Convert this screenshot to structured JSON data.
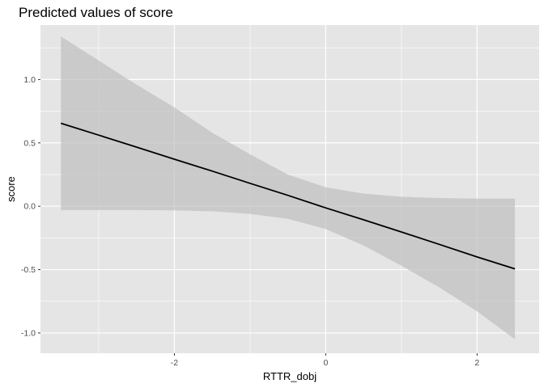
{
  "chart_data": {
    "type": "line",
    "title": "Predicted values of score",
    "xlabel": "RTTR_dobj",
    "ylabel": "score",
    "xlim": [
      -3.77,
      2.82
    ],
    "ylim": [
      -1.16,
      1.43
    ],
    "x_ticks": [
      -2,
      0,
      2
    ],
    "x_tick_labels": [
      "-2",
      "0",
      "2"
    ],
    "y_ticks": [
      -1.0,
      -0.5,
      0.0,
      0.5,
      1.0
    ],
    "y_tick_labels": [
      "-1.0",
      "-0.5",
      "0.0",
      "0.5",
      "1.0"
    ],
    "grid": true,
    "colors": {
      "panel": "#e5e5e5",
      "grid": "#ffffff",
      "ribbon": "#bfbfbf",
      "line": "#000000"
    },
    "series": [
      {
        "x": [
          -3.5,
          -3.0,
          -2.5,
          -2.0,
          -1.5,
          -1.0,
          -0.5,
          0.0,
          0.5,
          1.0,
          1.5,
          2.0,
          2.5
        ],
        "values": [
          0.655,
          0.561,
          0.467,
          0.371,
          0.277,
          0.181,
          0.086,
          -0.013,
          -0.107,
          -0.203,
          -0.301,
          -0.4,
          -0.494
        ],
        "lower": [
          -0.03,
          -0.03,
          -0.03,
          -0.033,
          -0.04,
          -0.06,
          -0.1,
          -0.18,
          -0.31,
          -0.47,
          -0.64,
          -0.83,
          -1.05
        ],
        "upper": [
          1.34,
          1.15,
          0.96,
          0.78,
          0.58,
          0.41,
          0.25,
          0.15,
          0.1,
          0.075,
          0.065,
          0.06,
          0.06
        ]
      }
    ]
  }
}
